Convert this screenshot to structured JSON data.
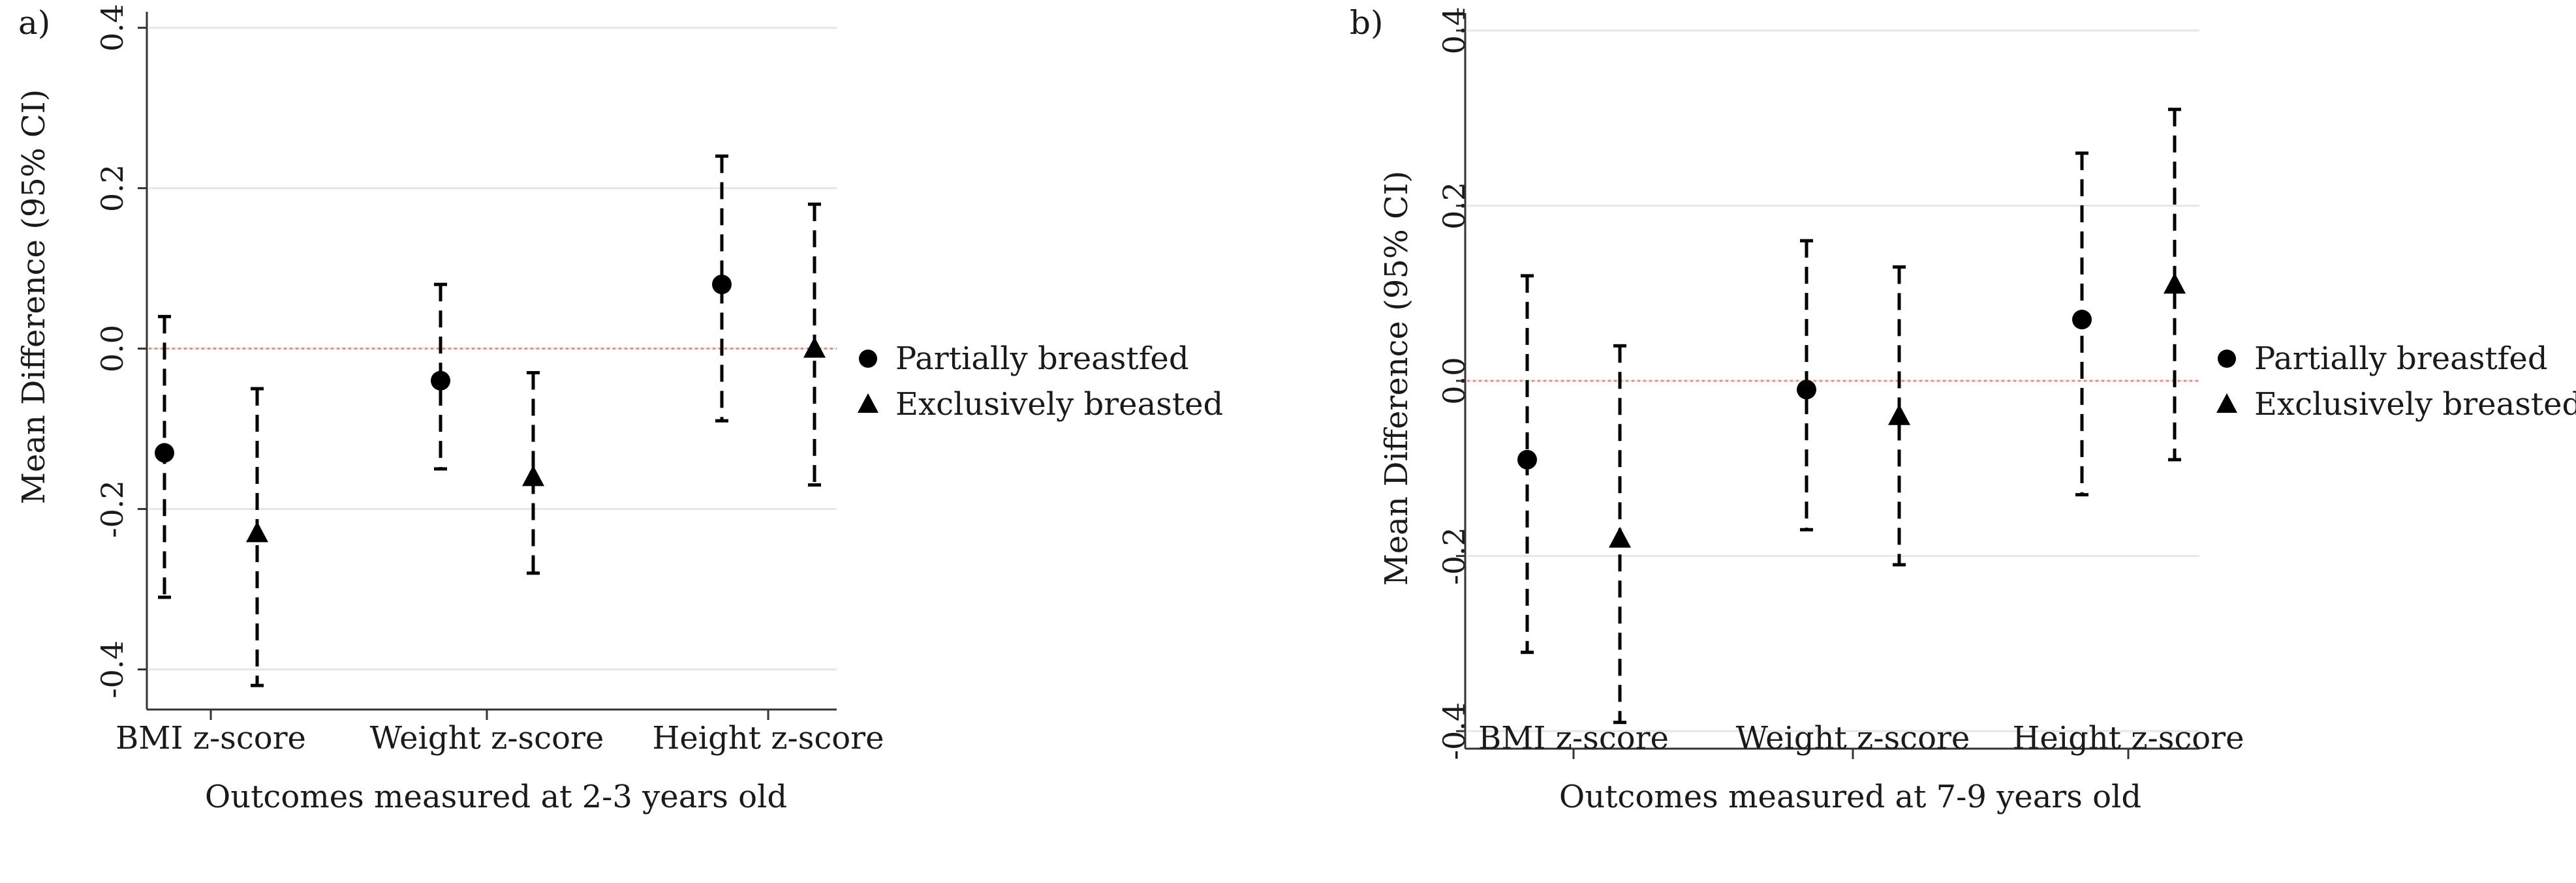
{
  "chart_data": [
    {
      "type": "scatter",
      "panel_label": "a)",
      "xlabel": "Outcomes measured at 2-3 years old",
      "ylabel": "Mean Difference (95% CI)",
      "ylim": [
        -0.45,
        0.42
      ],
      "yticks": [
        0.4,
        0.2,
        0.0,
        -0.2,
        -0.4
      ],
      "ytick_labels": [
        "0.4",
        "0.2",
        "0.0",
        "-0.2",
        "-0.4"
      ],
      "categories": [
        "BMI z-score",
        "Weight z-score",
        "Height z-score"
      ],
      "reference_line": 0,
      "grid": true,
      "legend_position": "right",
      "series": [
        {
          "name": "Partially breastfed",
          "marker": "circle",
          "values": [
            -0.13,
            -0.04,
            0.08
          ],
          "lower": [
            -0.31,
            -0.15,
            -0.09
          ],
          "upper": [
            0.04,
            0.08,
            0.24
          ]
        },
        {
          "name": "Exclusively breasted",
          "marker": "triangle",
          "values": [
            -0.23,
            -0.16,
            0.0
          ],
          "lower": [
            -0.42,
            -0.28,
            -0.17
          ],
          "upper": [
            -0.05,
            -0.03,
            0.18
          ]
        }
      ]
    },
    {
      "type": "scatter",
      "panel_label": "b)",
      "xlabel": "Outcomes measured at 7-9 years old",
      "ylabel": "Mean Difference (95% CI)",
      "ylim": [
        -0.42,
        0.42
      ],
      "yticks": [
        0.4,
        0.2,
        0.0,
        -0.2,
        -0.4
      ],
      "ytick_labels": [
        "0.4",
        "0.2",
        "0.0",
        "-0.2",
        "-0.4"
      ],
      "categories": [
        "BMI z-score",
        "Weight z-score",
        "Height z-score"
      ],
      "reference_line": 0,
      "grid": true,
      "legend_position": "right",
      "series": [
        {
          "name": "Partially breastfed",
          "marker": "circle",
          "values": [
            -0.09,
            -0.01,
            0.07
          ],
          "lower": [
            -0.31,
            -0.17,
            -0.13
          ],
          "upper": [
            0.12,
            0.16,
            0.26
          ]
        },
        {
          "name": "Exclusively breasted",
          "marker": "triangle",
          "values": [
            -0.18,
            -0.04,
            0.11
          ],
          "lower": [
            -0.39,
            -0.21,
            -0.09
          ],
          "upper": [
            0.04,
            0.13,
            0.31
          ]
        }
      ]
    }
  ],
  "colors": {
    "marker": "#000000",
    "grid": "#e6e6e6",
    "axis": "#333333",
    "reference_line": "#e8897a"
  }
}
